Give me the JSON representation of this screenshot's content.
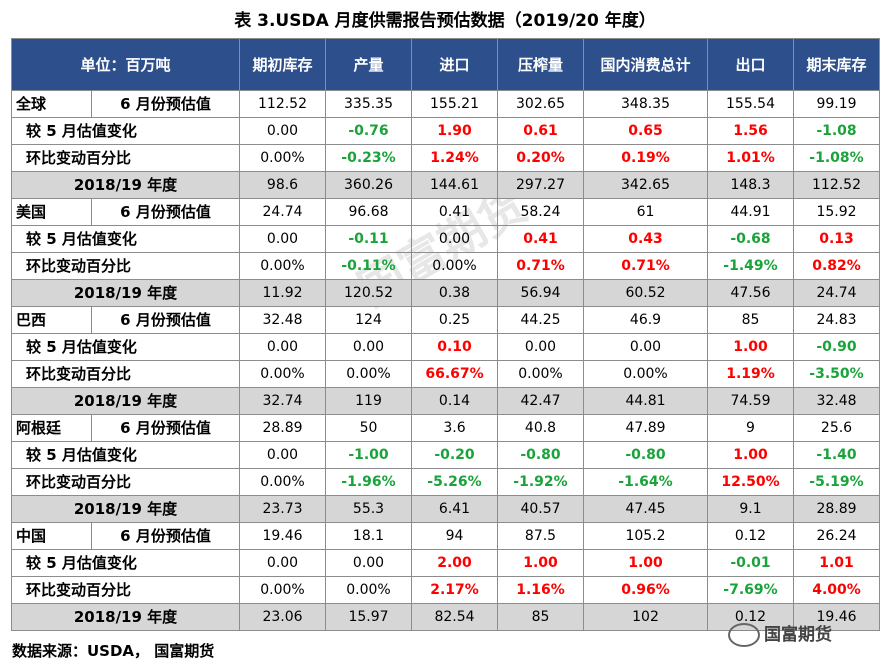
{
  "title": "表 3.USDA 月度供需报告预估数据（2019/20 年度）",
  "header": [
    "单位：百万吨",
    "期初库存",
    "产量",
    "进口",
    "压榨量",
    "国内消费总计",
    "出口",
    "期末库存"
  ],
  "colors": {
    "header_bg": "#2d4f8c",
    "positive": "#ff0000",
    "negative": "#1aa33a",
    "prev_bg": "#d6d6d6"
  },
  "rows": [
    {
      "country": "全球",
      "label": "6 月份预估值",
      "type": "main",
      "cells": [
        "112.52",
        "335.35",
        "155.21",
        "302.65",
        "348.35",
        "155.54",
        "99.19"
      ]
    },
    {
      "label": "较 5 月估值变化",
      "type": "chg",
      "cells": [
        "0.00",
        "-0.76",
        "1.90",
        "0.61",
        "0.65",
        "1.56",
        "-1.08"
      ]
    },
    {
      "label": "环比变动百分比",
      "type": "pct",
      "cells": [
        "0.00%",
        "-0.23%",
        "1.24%",
        "0.20%",
        "0.19%",
        "1.01%",
        "-1.08%"
      ]
    },
    {
      "label": "2018/19 年度",
      "type": "prev",
      "cells": [
        "98.6",
        "360.26",
        "144.61",
        "297.27",
        "342.65",
        "148.3",
        "112.52"
      ]
    },
    {
      "country": "美国",
      "label": "6 月份预估值",
      "type": "main",
      "cells": [
        "24.74",
        "96.68",
        "0.41",
        "58.24",
        "61",
        "44.91",
        "15.92"
      ]
    },
    {
      "label": "较 5 月估值变化",
      "type": "chg",
      "cells": [
        "0.00",
        "-0.11",
        "0.00",
        "0.41",
        "0.43",
        "-0.68",
        "0.13"
      ]
    },
    {
      "label": "环比变动百分比",
      "type": "pct",
      "cells": [
        "0.00%",
        "-0.11%",
        "0.00%",
        "0.71%",
        "0.71%",
        "-1.49%",
        "0.82%"
      ]
    },
    {
      "label": "2018/19 年度",
      "type": "prev",
      "cells": [
        "11.92",
        "120.52",
        "0.38",
        "56.94",
        "60.52",
        "47.56",
        "24.74"
      ]
    },
    {
      "country": "巴西",
      "label": "6 月份预估值",
      "type": "main",
      "cells": [
        "32.48",
        "124",
        "0.25",
        "44.25",
        "46.9",
        "85",
        "24.83"
      ]
    },
    {
      "label": "较 5 月估值变化",
      "type": "chg",
      "cells": [
        "0.00",
        "0.00",
        "0.10",
        "0.00",
        "0.00",
        "1.00",
        "-0.90"
      ]
    },
    {
      "label": "环比变动百分比",
      "type": "pct",
      "cells": [
        "0.00%",
        "0.00%",
        "66.67%",
        "0.00%",
        "0.00%",
        "1.19%",
        "-3.50%"
      ]
    },
    {
      "label": "2018/19 年度",
      "type": "prev",
      "cells": [
        "32.74",
        "119",
        "0.14",
        "42.47",
        "44.81",
        "74.59",
        "32.48"
      ]
    },
    {
      "country": "阿根廷",
      "label": "6 月份预估值",
      "type": "main",
      "cells": [
        "28.89",
        "50",
        "3.6",
        "40.8",
        "47.89",
        "9",
        "25.6"
      ]
    },
    {
      "label": "较 5 月估值变化",
      "type": "chg",
      "cells": [
        "0.00",
        "-1.00",
        "-0.20",
        "-0.80",
        "-0.80",
        "1.00",
        "-1.40"
      ]
    },
    {
      "label": "环比变动百分比",
      "type": "pct",
      "cells": [
        "0.00%",
        "-1.96%",
        "-5.26%",
        "-1.92%",
        "-1.64%",
        "12.50%",
        "-5.19%"
      ]
    },
    {
      "label": "2018/19 年度",
      "type": "prev",
      "cells": [
        "23.73",
        "55.3",
        "6.41",
        "40.57",
        "47.45",
        "9.1",
        "28.89"
      ]
    },
    {
      "country": "中国",
      "label": "6 月份预估值",
      "type": "main",
      "cells": [
        "19.46",
        "18.1",
        "94",
        "87.5",
        "105.2",
        "0.12",
        "26.24"
      ]
    },
    {
      "label": "较 5 月估值变化",
      "type": "chg",
      "cells": [
        "0.00",
        "0.00",
        "2.00",
        "1.00",
        "1.00",
        "-0.01",
        "1.01"
      ]
    },
    {
      "label": "环比变动百分比",
      "type": "pct",
      "cells": [
        "0.00%",
        "0.00%",
        "2.17%",
        "1.16%",
        "0.96%",
        "-7.69%",
        "4.00%"
      ]
    },
    {
      "label": "2018/19 年度",
      "type": "prev",
      "cells": [
        "23.06",
        "15.97",
        "82.54",
        "85",
        "102",
        "0.12",
        "19.46"
      ]
    }
  ],
  "source": "数据来源：USDA， 国富期货",
  "brand": "国富期货",
  "watermark": "国富期货"
}
